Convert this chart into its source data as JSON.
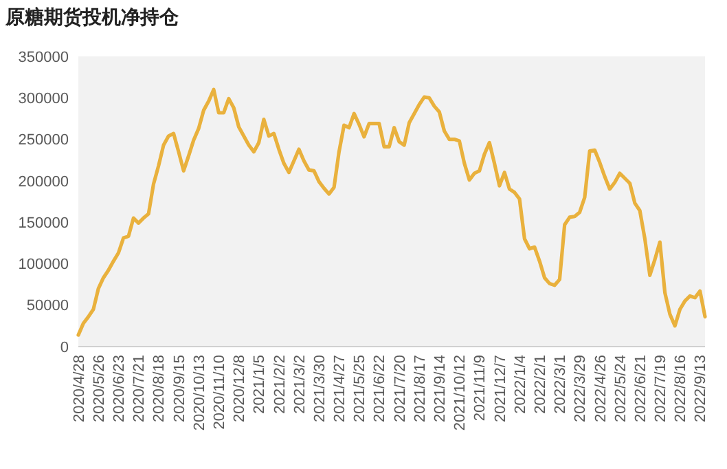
{
  "chart_data": {
    "type": "line",
    "title": "原糖期货投机净持仓",
    "categories": [
      "2020/4/28",
      null,
      null,
      null,
      "2020/5/26",
      null,
      null,
      null,
      "2020/6/23",
      null,
      null,
      null,
      "2020/7/21",
      null,
      null,
      null,
      "2020/8/18",
      null,
      null,
      null,
      "2020/9/15",
      null,
      null,
      null,
      "2020/10/13",
      null,
      null,
      null,
      "2020/11/10",
      null,
      null,
      null,
      "2020/12/8",
      null,
      null,
      null,
      "2021/1/5",
      null,
      null,
      null,
      "2021/2/2",
      null,
      null,
      null,
      "2021/3/2",
      null,
      null,
      null,
      "2021/3/30",
      null,
      null,
      null,
      "2021/4/27",
      null,
      null,
      null,
      "2021/5/25",
      null,
      null,
      null,
      "2021/6/22",
      null,
      null,
      null,
      "2021/7/20",
      null,
      null,
      null,
      "2021/8/17",
      null,
      null,
      null,
      "2021/9/14",
      null,
      null,
      null,
      "2021/10/12",
      null,
      null,
      null,
      "2021/11/9",
      null,
      null,
      null,
      "2021/12/7",
      null,
      null,
      null,
      "2022/1/4",
      null,
      null,
      null,
      "2022/2/1",
      null,
      null,
      null,
      "2022/3/1",
      null,
      null,
      null,
      "2022/3/29",
      null,
      null,
      null,
      "2022/4/26",
      null,
      null,
      null,
      "2022/5/24",
      null,
      null,
      null,
      "2022/6/21",
      null,
      null,
      null,
      "2022/7/19",
      null,
      null,
      null,
      "2022/8/16",
      null,
      null,
      null,
      "2022/9/13",
      null
    ],
    "series": [
      {
        "color": "#e9b13d",
        "values": [
          14000,
          28000,
          36000,
          45000,
          70000,
          83000,
          92000,
          103000,
          113000,
          131000,
          133000,
          155000,
          149000,
          155000,
          160000,
          196000,
          218000,
          243000,
          254000,
          257000,
          235000,
          212000,
          230000,
          249000,
          263000,
          285000,
          296000,
          310000,
          282000,
          282000,
          299000,
          288000,
          265000,
          254000,
          243000,
          235000,
          246000,
          274000,
          254000,
          257000,
          238000,
          221000,
          210000,
          224000,
          238000,
          224000,
          213000,
          212000,
          199000,
          191000,
          184000,
          192000,
          235000,
          267000,
          264000,
          281000,
          268000,
          253000,
          269000,
          269000,
          269000,
          241000,
          241000,
          264000,
          247000,
          243000,
          270000,
          281000,
          292000,
          301000,
          300000,
          290000,
          283000,
          260000,
          250000,
          250000,
          248000,
          221000,
          201000,
          209000,
          212000,
          232000,
          246000,
          221000,
          194000,
          210000,
          190000,
          186000,
          178000,
          130000,
          118000,
          120000,
          103000,
          83000,
          76000,
          74000,
          81000,
          147000,
          156000,
          157000,
          162000,
          180000,
          236000,
          237000,
          222000,
          205000,
          190000,
          198000,
          209000,
          203000,
          197000,
          173000,
          164000,
          130000,
          86000,
          105000,
          126000,
          65000,
          39000,
          25000,
          45000,
          55000,
          61000,
          59000,
          67000,
          36000
        ]
      }
    ],
    "ylim": [
      0,
      350000
    ],
    "yticks": [
      0,
      50000,
      100000,
      150000,
      200000,
      250000,
      300000,
      350000
    ],
    "grid": false,
    "marker": "none",
    "line_style": "solid"
  }
}
